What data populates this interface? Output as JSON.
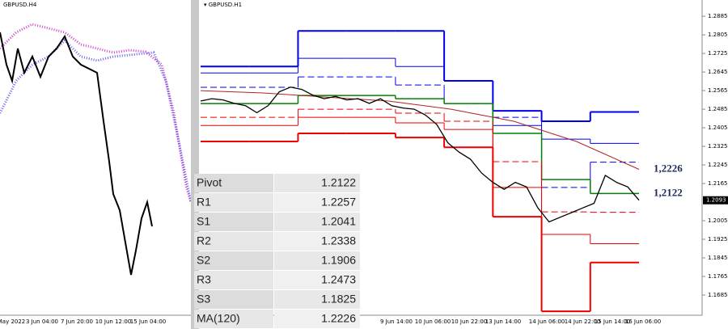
{
  "left_panel": {
    "title": "GBPUSD.H4",
    "x_labels": [
      "May 2022",
      "3 Jun 04:00",
      "7 Jun 20:00",
      "10 Jun 12:00",
      "15 Jun 04:00"
    ]
  },
  "chart_data": {
    "type": "line",
    "title": "GBPUSD.H1",
    "x_labels": [
      "9 Jun 14:00",
      "10 Jun 06:00",
      "10 Jun 22:00",
      "13 Jun 14:00",
      "14 Jun 06:00",
      "14 Jun 22:00",
      "15 Jun 14:00",
      "16 Jun 06:00"
    ],
    "ylim": [
      1.1591,
      1.2955
    ],
    "yticks": [
      1.2885,
      1.2805,
      1.2725,
      1.2645,
      1.2565,
      1.2485,
      1.2405,
      1.2325,
      1.2245,
      1.2165,
      1.2005,
      1.1925,
      1.1845,
      1.1765,
      1.1685
    ],
    "current_price": 1.2093,
    "annotations": [
      {
        "text": "1,2226",
        "value": 1.2226
      },
      {
        "text": "1,2122",
        "value": 1.2122
      }
    ],
    "price": {
      "color": "#000000",
      "values": [
        1.252,
        1.253,
        1.2525,
        1.251,
        1.25,
        1.247,
        1.25,
        1.256,
        1.258,
        1.257,
        1.2545,
        1.253,
        1.254,
        1.2525,
        1.253,
        1.251,
        1.253,
        1.25,
        1.249,
        1.2485,
        1.246,
        1.242,
        1.234,
        1.23,
        1.227,
        1.221,
        1.217,
        1.214,
        1.217,
        1.215,
        1.206,
        1.2,
        1.202,
        1.204,
        1.206,
        1.208,
        1.22,
        1.217,
        1.215,
        1.2093
      ]
    },
    "ma": {
      "color": "#b22222",
      "values": [
        1.2565,
        1.2555,
        1.2537,
        1.252,
        1.2485,
        1.2433,
        1.2346,
        1.2226
      ]
    },
    "levels": [
      {
        "color": "#0000ee",
        "width": 2,
        "dash": false,
        "values": [
          1.2669,
          1.2669,
          1.2822,
          1.2822,
          1.2822,
          1.2607,
          1.2478,
          1.2433,
          1.2473
        ]
      },
      {
        "color": "#0000ee",
        "width": 1,
        "dash": false,
        "values": [
          1.2641,
          1.2641,
          1.2704,
          1.2704,
          1.2669,
          1.2607,
          1.2415,
          1.2356,
          1.2338
        ]
      },
      {
        "color": "#0000ee",
        "width": 1,
        "dash": true,
        "values": [
          1.2579,
          1.2579,
          1.2624,
          1.2624,
          1.2589,
          1.2509,
          1.245,
          1.2148,
          1.2257
        ]
      },
      {
        "color": "#008000",
        "width": 1.5,
        "dash": false,
        "values": [
          1.2509,
          1.2509,
          1.2544,
          1.2544,
          1.253,
          1.2509,
          1.2381,
          1.2182,
          1.2122
        ]
      },
      {
        "color": "#ee0000",
        "width": 1,
        "dash": true,
        "values": [
          1.245,
          1.245,
          1.2485,
          1.2485,
          1.2468,
          1.2433,
          1.2259,
          1.2043,
          1.2041
        ]
      },
      {
        "color": "#ee0000",
        "width": 1,
        "dash": false,
        "values": [
          1.2415,
          1.2415,
          1.245,
          1.245,
          1.2426,
          1.2398,
          1.2148,
          1.1946,
          1.1906
        ]
      },
      {
        "color": "#ee0000",
        "width": 2,
        "dash": false,
        "values": [
          1.2346,
          1.2346,
          1.2381,
          1.2381,
          1.2363,
          1.2321,
          1.2022,
          1.1615,
          1.1825
        ]
      }
    ]
  },
  "table": {
    "rows": [
      [
        "Pivot",
        "1.2122"
      ],
      [
        "R1",
        "1.2257"
      ],
      [
        "S1",
        "1.2041"
      ],
      [
        "R2",
        "1.2338"
      ],
      [
        "S2",
        "1.1906"
      ],
      [
        "R3",
        "1.2473"
      ],
      [
        "S3",
        "1.1825"
      ],
      [
        "MA(120)",
        "1.2226"
      ]
    ]
  }
}
